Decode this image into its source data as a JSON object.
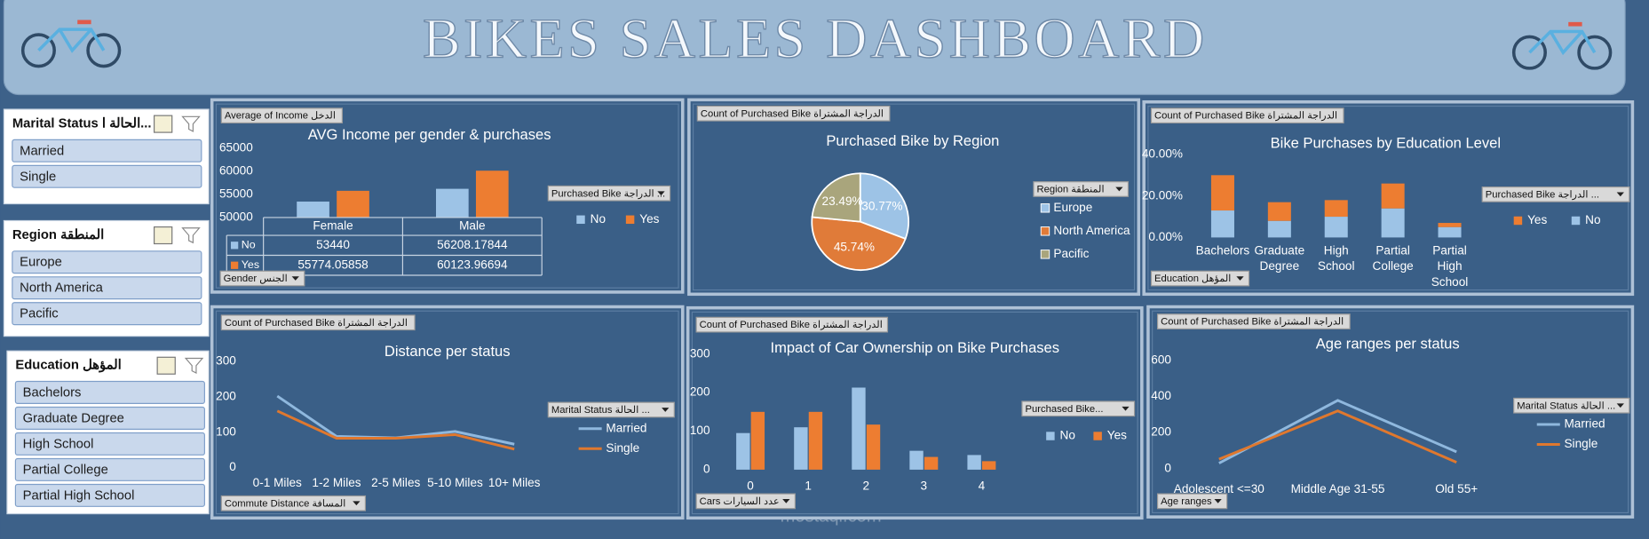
{
  "header": {
    "title": "BIKES SALES DASHBOARD"
  },
  "watermark": "mostaql.com",
  "slicers": [
    {
      "title": "Marital Status الحالة ا...",
      "items": [
        "Married",
        "Single"
      ]
    },
    {
      "title": "Region المنطقة",
      "items": [
        "Europe",
        "North America",
        "Pacific"
      ]
    },
    {
      "title": "Education المؤهل",
      "items": [
        "Bachelors",
        "Graduate Degree",
        "High School",
        "Partial College",
        "Partial High School"
      ]
    }
  ],
  "chart_data": [
    {
      "type": "bar",
      "title": "AVG Income per gender & purchases",
      "buttons": [
        "Average of Income الدخل",
        "Gender الجنس",
        "Purchased Bike  الدراجة ..."
      ],
      "categories": [
        "Female",
        "Male"
      ],
      "series": [
        {
          "name": "No",
          "color": "#9dc3e6",
          "values": [
            53440,
            56208.17844
          ]
        },
        {
          "name": "Yes",
          "color": "#ed7d31",
          "values": [
            55774.05858,
            60123.96694
          ]
        }
      ],
      "ylim": [
        50000,
        65000
      ],
      "yticks": [
        50000,
        55000,
        60000,
        65000
      ],
      "data_table": true
    },
    {
      "type": "pie",
      "title": "Purchased Bike by Region",
      "buttons": [
        "Count of Purchased Bike الدراجة المشتراة",
        "Region المنطقة"
      ],
      "categories": [
        "Europe",
        "North America",
        "Pacific"
      ],
      "values": [
        30.77,
        45.74,
        23.49
      ],
      "value_labels": [
        "30.77%",
        "45.74%",
        "23.49%"
      ],
      "colors": [
        "#9dc3e6",
        "#e07b39",
        "#a9a57c"
      ]
    },
    {
      "type": "stacked_bar",
      "title": "Bike Purchases by Education Level",
      "buttons": [
        "Count of Purchased Bike الدراجة المشتراة",
        "Education المؤهل",
        "Purchased Bike  الدراجة ..."
      ],
      "categories": [
        "Bachelors",
        "Graduate Degree",
        "High School",
        "Partial College",
        "Partial High School"
      ],
      "series": [
        {
          "name": "Yes",
          "color": "#ed7d31",
          "values": [
            17,
            9,
            8,
            12,
            2
          ]
        },
        {
          "name": "No",
          "color": "#9dc3e6",
          "values": [
            13,
            8,
            10,
            14,
            5
          ]
        }
      ],
      "ylim": [
        0,
        40
      ],
      "yticks": [
        {
          "value": 0,
          "label": "0.00%"
        },
        {
          "value": 20,
          "label": "20.00%"
        },
        {
          "value": 40,
          "label": "40.00%"
        }
      ]
    },
    {
      "type": "line",
      "title": "Distance per status",
      "buttons": [
        "Count of Purchased Bike الدراجة المشتراة",
        "Commute Distance المسافة",
        "Marital Status  الحالة ..."
      ],
      "categories": [
        "0-1 Miles",
        "1-2 Miles",
        "2-5 Miles",
        "5-10 Miles",
        "10+ Miles"
      ],
      "series": [
        {
          "name": "Married",
          "color": "#8fb8de",
          "values": [
            202,
            88,
            84,
            102,
            66
          ]
        },
        {
          "name": "Single",
          "color": "#e0782e",
          "values": [
            160,
            83,
            83,
            93,
            52
          ]
        }
      ],
      "ylim": [
        0,
        300
      ],
      "yticks": [
        0,
        100,
        200,
        300
      ]
    },
    {
      "type": "bar",
      "title": "Impact of Car Ownership on Bike Purchases",
      "buttons": [
        "Count of Purchased Bike الدراجة المشتراة",
        "Cars عدد السيارات",
        "Purchased Bike..."
      ],
      "categories": [
        "0",
        "1",
        "2",
        "3",
        "4"
      ],
      "series": [
        {
          "name": "No",
          "color": "#9dc3e6",
          "values": [
            95,
            110,
            213,
            49,
            38
          ]
        },
        {
          "name": "Yes",
          "color": "#ed7d31",
          "values": [
            150,
            150,
            117,
            33,
            22
          ]
        }
      ],
      "ylim": [
        0,
        300
      ],
      "yticks": [
        0,
        100,
        200,
        300
      ]
    },
    {
      "type": "line",
      "title": "Age ranges per status",
      "buttons": [
        "Count of Purchased Bike الدراجة المشتراة",
        "Age ranges",
        "Marital Status  الحالة ..."
      ],
      "categories": [
        "Adolescent <=30",
        "Middle Age 31-55",
        "Old 55+"
      ],
      "series": [
        {
          "name": "Married",
          "color": "#8fb8de",
          "values": [
            30,
            378,
            93
          ]
        },
        {
          "name": "Single",
          "color": "#e0782e",
          "values": [
            52,
            320,
            35
          ]
        }
      ],
      "ylim": [
        0,
        600
      ],
      "yticks": [
        0,
        200,
        400,
        600
      ]
    }
  ]
}
